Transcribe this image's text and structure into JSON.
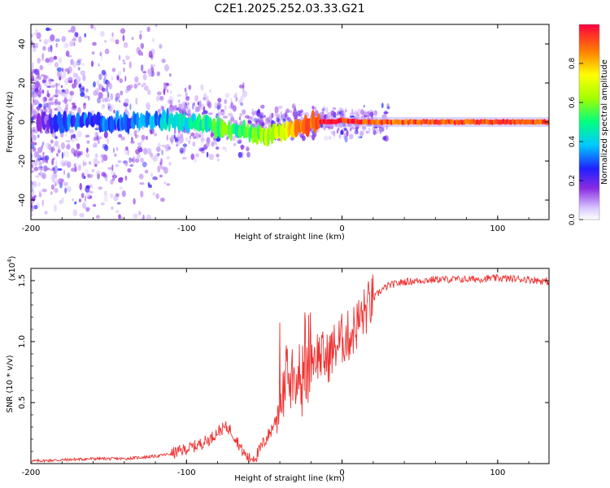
{
  "title": "C2E1.2025.252.03.33.G21",
  "chart_data": [
    {
      "type": "heatmap",
      "title": "C2E1.2025.252.03.33.G21",
      "xlabel": "Height of straight line (km)",
      "ylabel": "Frequency (Hz)",
      "xlim": [
        -200,
        133
      ],
      "ylim": [
        -50,
        50
      ],
      "x_ticks": [
        "-200",
        "-100",
        "0",
        "100"
      ],
      "y_ticks": [
        "-40",
        "-20",
        "0",
        "20",
        "40"
      ],
      "ridge": {
        "x": [
          -195,
          -175,
          -150,
          -130,
          -110,
          -95,
          -85,
          -75,
          -65,
          -55,
          -45,
          -38,
          -30,
          -22,
          -15,
          -5,
          0,
          10,
          20,
          40,
          80,
          133
        ],
        "freq": [
          0,
          0,
          0,
          0,
          1,
          0,
          -2,
          -4,
          -5,
          -6,
          -6,
          -5,
          -3,
          -1,
          0,
          0,
          1,
          0,
          0,
          0,
          0,
          0
        ],
        "amplitude": [
          0.15,
          0.3,
          0.28,
          0.32,
          0.4,
          0.45,
          0.5,
          0.55,
          0.5,
          0.6,
          0.65,
          0.7,
          0.8,
          0.9,
          0.95,
          1.0,
          0.95,
          0.95,
          0.9,
          0.9,
          0.92,
          0.9
        ]
      },
      "colorbar": {
        "label": "Normalized spectral amplitude",
        "range": [
          0,
          1
        ],
        "ticks": [
          "0.0",
          "0.2",
          "0.4",
          "0.6",
          "0.8"
        ]
      }
    },
    {
      "type": "line",
      "xlabel": "Height of straight line (km)",
      "ylabel": "SNR (10 * v/v)",
      "scale_label_main": "(x10",
      "scale_label_exp": "4",
      "scale_label_end": ")",
      "xlim": [
        -200,
        133
      ],
      "ylim": [
        0,
        1.6
      ],
      "x_ticks": [
        "-200",
        "-100",
        "0",
        "100"
      ],
      "y_ticks": [
        "0.5",
        "1.0",
        "1.5"
      ],
      "series": [
        {
          "name": "SNR",
          "color": "#ee3333",
          "x": [
            -200,
            -180,
            -160,
            -140,
            -120,
            -110,
            -100,
            -95,
            -90,
            -85,
            -80,
            -75,
            -72,
            -68,
            -64,
            -60,
            -55,
            -50,
            -46,
            -42,
            -40,
            -38,
            -36,
            -34,
            -32,
            -30,
            -28,
            -26,
            -24,
            -22,
            -20,
            -15,
            -10,
            -5,
            0,
            5,
            10,
            15,
            20,
            25,
            30,
            40,
            60,
            80,
            100,
            120,
            133
          ],
          "y": [
            0.02,
            0.03,
            0.04,
            0.04,
            0.06,
            0.08,
            0.12,
            0.14,
            0.17,
            0.2,
            0.26,
            0.3,
            0.28,
            0.2,
            0.1,
            0.04,
            0.06,
            0.18,
            0.26,
            0.38,
            0.6,
            0.55,
            0.7,
            0.6,
            0.72,
            0.5,
            0.8,
            0.55,
            0.85,
            0.6,
            0.88,
            0.9,
            0.85,
            0.95,
            1.02,
            1.05,
            1.15,
            1.25,
            1.35,
            1.42,
            1.46,
            1.49,
            1.51,
            1.51,
            1.52,
            1.51,
            1.49
          ]
        }
      ]
    }
  ]
}
